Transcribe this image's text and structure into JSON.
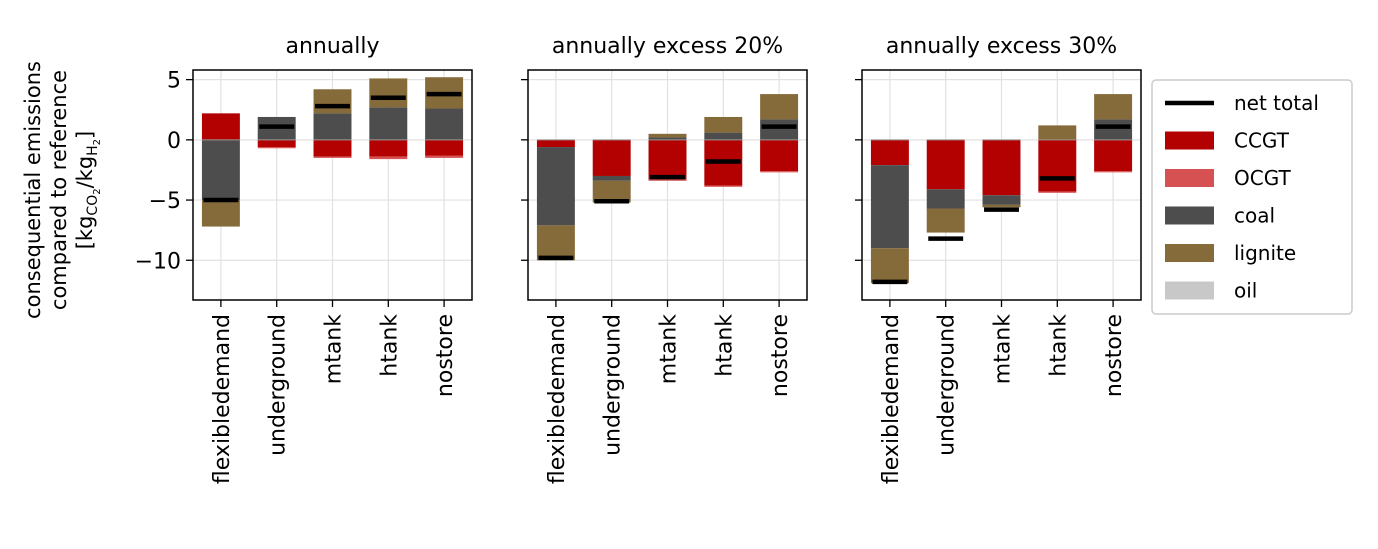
{
  "chart_data": {
    "type": "bar",
    "stacked": true,
    "categories": [
      "flexibledemand",
      "underground",
      "mtank",
      "htank",
      "nostore"
    ],
    "ylabel_lines": [
      "consequential emissions",
      "compared to reference"
    ],
    "ylabel_unit": {
      "open": "[kg",
      "sub1": "CO",
      "sub1b": "2",
      "mid": "/kg",
      "sub2": "H",
      "sub2b": "2",
      "close": "]"
    },
    "ylim": [
      -13.3,
      5.8
    ],
    "yticks": [
      5,
      0,
      -5,
      -10
    ],
    "ytick_labels": [
      "5",
      "0",
      "−5",
      "−10"
    ],
    "grid": true,
    "legend_position": "right",
    "colors": {
      "CCGT": "#b30000",
      "OCGT": "#d65252",
      "coal": "#4d4d4d",
      "lignite": "#856a3a",
      "oil": "#c8c8c8",
      "net": "#000000"
    },
    "legend": [
      {
        "key": "net",
        "label": "net total",
        "kind": "line"
      },
      {
        "key": "CCGT",
        "label": "CCGT",
        "kind": "patch"
      },
      {
        "key": "OCGT",
        "label": "OCGT",
        "kind": "patch"
      },
      {
        "key": "coal",
        "label": "coal",
        "kind": "patch"
      },
      {
        "key": "lignite",
        "label": "lignite",
        "kind": "patch"
      },
      {
        "key": "oil",
        "label": "oil",
        "kind": "patch"
      }
    ],
    "panels": [
      {
        "title": "annually",
        "series": {
          "CCGT": [
            2.2,
            -0.6,
            -1.4,
            -1.4,
            -1.3
          ],
          "OCGT": [
            0.0,
            -0.1,
            -0.1,
            -0.2,
            -0.2
          ],
          "coal": [
            -5.0,
            1.9,
            2.2,
            2.7,
            2.6
          ],
          "lignite": [
            -2.2,
            0.0,
            2.0,
            2.4,
            2.6
          ],
          "oil": [
            0.0,
            0.0,
            0.0,
            0.0,
            0.0
          ]
        },
        "net": [
          -5.0,
          1.1,
          2.8,
          3.5,
          3.8
        ]
      },
      {
        "title": "annually excess 20%",
        "series": {
          "CCGT": [
            -0.6,
            -3.0,
            -3.3,
            -3.8,
            -2.6
          ],
          "OCGT": [
            0.0,
            0.0,
            -0.1,
            -0.1,
            -0.1
          ],
          "coal": [
            -6.5,
            -0.4,
            0.2,
            0.6,
            1.7
          ],
          "lignite": [
            -2.9,
            -1.8,
            0.3,
            1.3,
            2.1
          ],
          "oil": [
            0.0,
            0.0,
            0.0,
            0.0,
            0.0
          ]
        },
        "net": [
          -9.8,
          -5.1,
          -3.1,
          -1.8,
          1.1
        ]
      },
      {
        "title": "annually excess 30%",
        "series": {
          "CCGT": [
            -2.1,
            -4.1,
            -4.6,
            -4.3,
            -2.6
          ],
          "OCGT": [
            0.0,
            0.0,
            0.0,
            -0.1,
            -0.1
          ],
          "coal": [
            -6.9,
            -1.6,
            -0.8,
            0.0,
            1.7
          ],
          "lignite": [
            -2.9,
            -2.0,
            -0.2,
            1.2,
            2.1
          ],
          "oil": [
            0.0,
            0.0,
            0.0,
            0.0,
            0.0
          ]
        },
        "net": [
          -11.8,
          -8.2,
          -5.8,
          -3.2,
          1.1
        ]
      }
    ]
  }
}
